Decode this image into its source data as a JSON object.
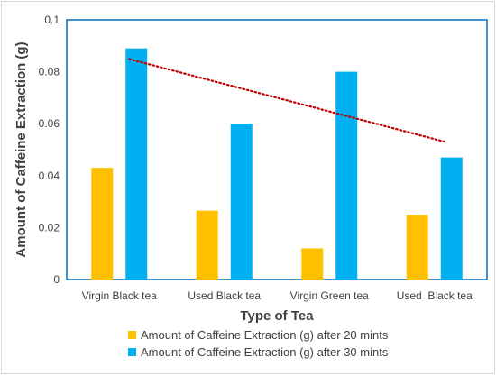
{
  "chart_data": {
    "type": "bar",
    "xlabel": "Type of Tea",
    "ylabel": "Amount of Caffeine Extraction (g)",
    "categories": [
      "Virgin Black tea",
      "Used Black tea",
      "Virgin Green tea",
      "Used  Black tea"
    ],
    "series": [
      {
        "name": "Amount of Caffeine Extraction (g) after 20 mints",
        "color": "#ffc000",
        "values": [
          0.043,
          0.0265,
          0.012,
          0.025
        ]
      },
      {
        "name": "Amount of Caffeine Extraction (g) after 30 mints",
        "color": "#00b0f0",
        "values": [
          0.089,
          0.06,
          0.08,
          0.047
        ]
      }
    ],
    "trendline": {
      "series": "Amount of Caffeine Extraction (g) after 30 mints",
      "type": "linear",
      "color": "#c00000",
      "style": "dotted"
    },
    "ylim": [
      0,
      0.1
    ],
    "yticks": [
      "0",
      "0.02",
      "0.04",
      "0.06",
      "0.08",
      "0.1"
    ],
    "plot_border_color": "#0070c0",
    "grid": false,
    "legend_position": "bottom"
  }
}
